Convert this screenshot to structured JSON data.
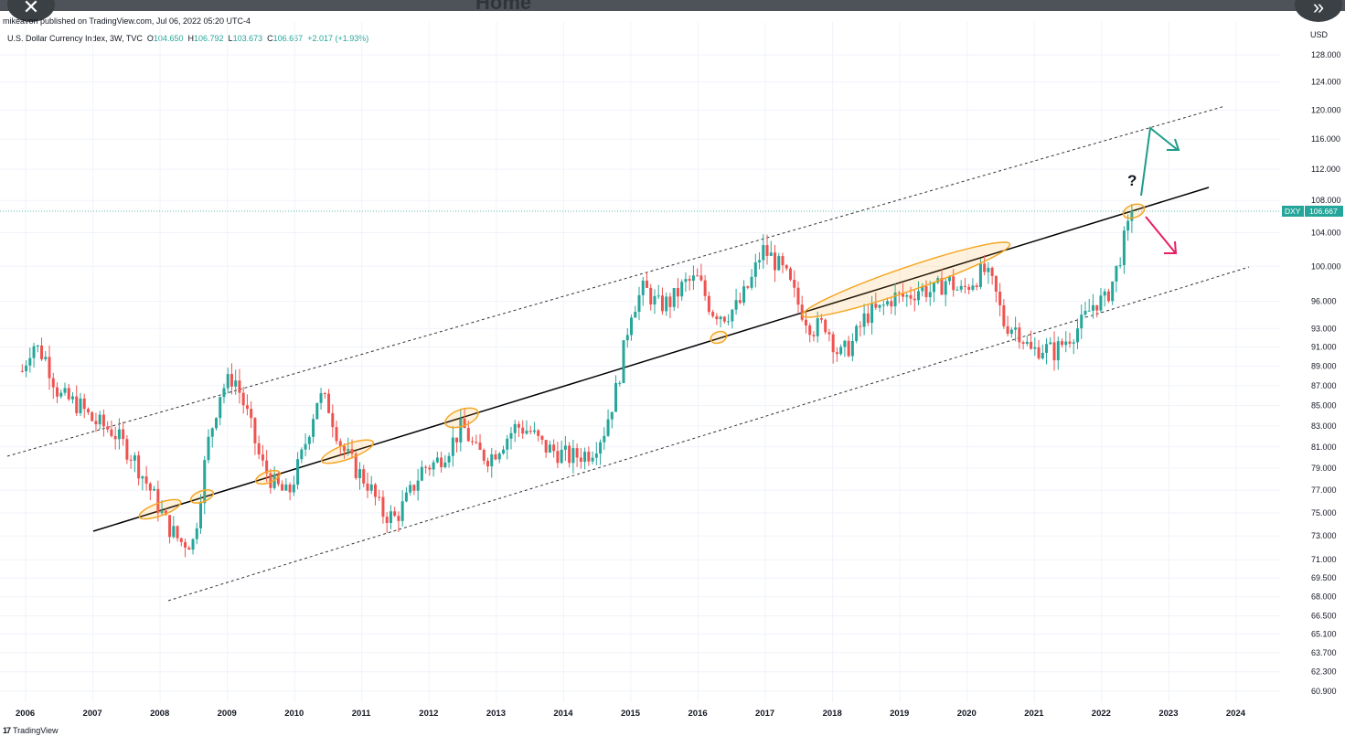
{
  "header": {
    "ghost_title": "Home",
    "publisher": "mikeavon published on TradingView.com, Jul 06, 2022 05:20 UTC-4"
  },
  "legend": {
    "title": "U.S. Dollar Currency Index, 3W, TVC",
    "open_label": "O",
    "open": "104.650",
    "high_label": "H",
    "high": "106.792",
    "low_label": "L",
    "low": "103.673",
    "close_label": "C",
    "close": "106.667",
    "change": "+2.017 (+1.93%)"
  },
  "scale": {
    "currency": "USD"
  },
  "price_tag": {
    "symbol": "DXY",
    "value": "106.667"
  },
  "annotation": {
    "question": "?"
  },
  "footer": {
    "logo": "17",
    "brand": "TradingView"
  },
  "colors": {
    "up": "#26a69a",
    "down": "#ef5350",
    "marker": "#f5a623",
    "arrow_up": "#1e9b8a",
    "arrow_down": "#e91e63"
  },
  "chart_data": {
    "type": "candlestick",
    "symbol": "DXY",
    "interval": "3W",
    "y_scale": "log",
    "y_ticks": [
      "128.000",
      "124.000",
      "120.000",
      "116.000",
      "112.000",
      "108.000",
      "104.000",
      "100.000",
      "96.000",
      "93.000",
      "91.000",
      "89.000",
      "87.000",
      "85.000",
      "83.000",
      "81.000",
      "79.000",
      "77.000",
      "75.000",
      "73.000",
      "71.000",
      "69.500",
      "68.000",
      "66.500",
      "65.100",
      "63.700",
      "62.300",
      "60.900"
    ],
    "x_ticks": [
      "2006",
      "2007",
      "2008",
      "2009",
      "2010",
      "2011",
      "2012",
      "2013",
      "2014",
      "2015",
      "2016",
      "2017",
      "2018",
      "2019",
      "2020",
      "2021",
      "2022",
      "2023",
      "2024"
    ],
    "last_close": 106.667,
    "series_path": [
      [
        2005.95,
        88.5
      ],
      [
        2006.1,
        91.5
      ],
      [
        2006.3,
        89.8
      ],
      [
        2006.5,
        86.0
      ],
      [
        2006.8,
        85.0
      ],
      [
        2007.0,
        83.5
      ],
      [
        2007.3,
        82.5
      ],
      [
        2007.6,
        80.0
      ],
      [
        2007.9,
        76.5
      ],
      [
        2008.1,
        74.0
      ],
      [
        2008.3,
        72.5
      ],
      [
        2008.5,
        72.5
      ],
      [
        2008.7,
        81.0
      ],
      [
        2008.9,
        86.5
      ],
      [
        2009.1,
        88.0
      ],
      [
        2009.3,
        84.0
      ],
      [
        2009.5,
        79.5
      ],
      [
        2009.7,
        77.5
      ],
      [
        2009.9,
        76.5
      ],
      [
        2010.1,
        80.0
      ],
      [
        2010.35,
        86.0
      ],
      [
        2010.5,
        85.0
      ],
      [
        2010.7,
        81.0
      ],
      [
        2010.9,
        79.0
      ],
      [
        2011.1,
        77.5
      ],
      [
        2011.3,
        75.0
      ],
      [
        2011.5,
        74.5
      ],
      [
        2011.7,
        76.5
      ],
      [
        2011.9,
        79.0
      ],
      [
        2012.1,
        79.5
      ],
      [
        2012.3,
        81.0
      ],
      [
        2012.5,
        83.0
      ],
      [
        2012.7,
        80.5
      ],
      [
        2012.9,
        80.0
      ],
      [
        2013.1,
        81.5
      ],
      [
        2013.3,
        83.0
      ],
      [
        2013.5,
        82.5
      ],
      [
        2013.7,
        81.0
      ],
      [
        2013.9,
        80.5
      ],
      [
        2014.1,
        80.0
      ],
      [
        2014.4,
        80.5
      ],
      [
        2014.6,
        82.5
      ],
      [
        2014.8,
        87.0
      ],
      [
        2015.0,
        95.0
      ],
      [
        2015.2,
        97.5
      ],
      [
        2015.4,
        95.5
      ],
      [
        2015.6,
        96.0
      ],
      [
        2015.8,
        98.0
      ],
      [
        2016.0,
        98.5
      ],
      [
        2016.2,
        95.0
      ],
      [
        2016.4,
        94.5
      ],
      [
        2016.6,
        95.5
      ],
      [
        2016.8,
        98.5
      ],
      [
        2016.95,
        102.0
      ],
      [
        2017.1,
        101.0
      ],
      [
        2017.3,
        99.0
      ],
      [
        2017.5,
        95.5
      ],
      [
        2017.7,
        93.0
      ],
      [
        2017.9,
        93.5
      ],
      [
        2018.1,
        90.0
      ],
      [
        2018.3,
        91.5
      ],
      [
        2018.5,
        94.5
      ],
      [
        2018.7,
        95.0
      ],
      [
        2018.9,
        96.5
      ],
      [
        2019.1,
        96.5
      ],
      [
        2019.3,
        97.5
      ],
      [
        2019.5,
        97.0
      ],
      [
        2019.7,
        98.5
      ],
      [
        2019.9,
        97.0
      ],
      [
        2020.1,
        98.5
      ],
      [
        2020.25,
        99.5
      ],
      [
        2020.4,
        97.5
      ],
      [
        2020.55,
        93.5
      ],
      [
        2020.75,
        93.0
      ],
      [
        2020.95,
        90.5
      ],
      [
        2021.1,
        91.0
      ],
      [
        2021.3,
        90.5
      ],
      [
        2021.5,
        92.0
      ],
      [
        2021.7,
        93.5
      ],
      [
        2021.9,
        96.0
      ],
      [
        2022.05,
        96.0
      ],
      [
        2022.2,
        99.0
      ],
      [
        2022.35,
        103.5
      ],
      [
        2022.5,
        106.667
      ]
    ]
  }
}
